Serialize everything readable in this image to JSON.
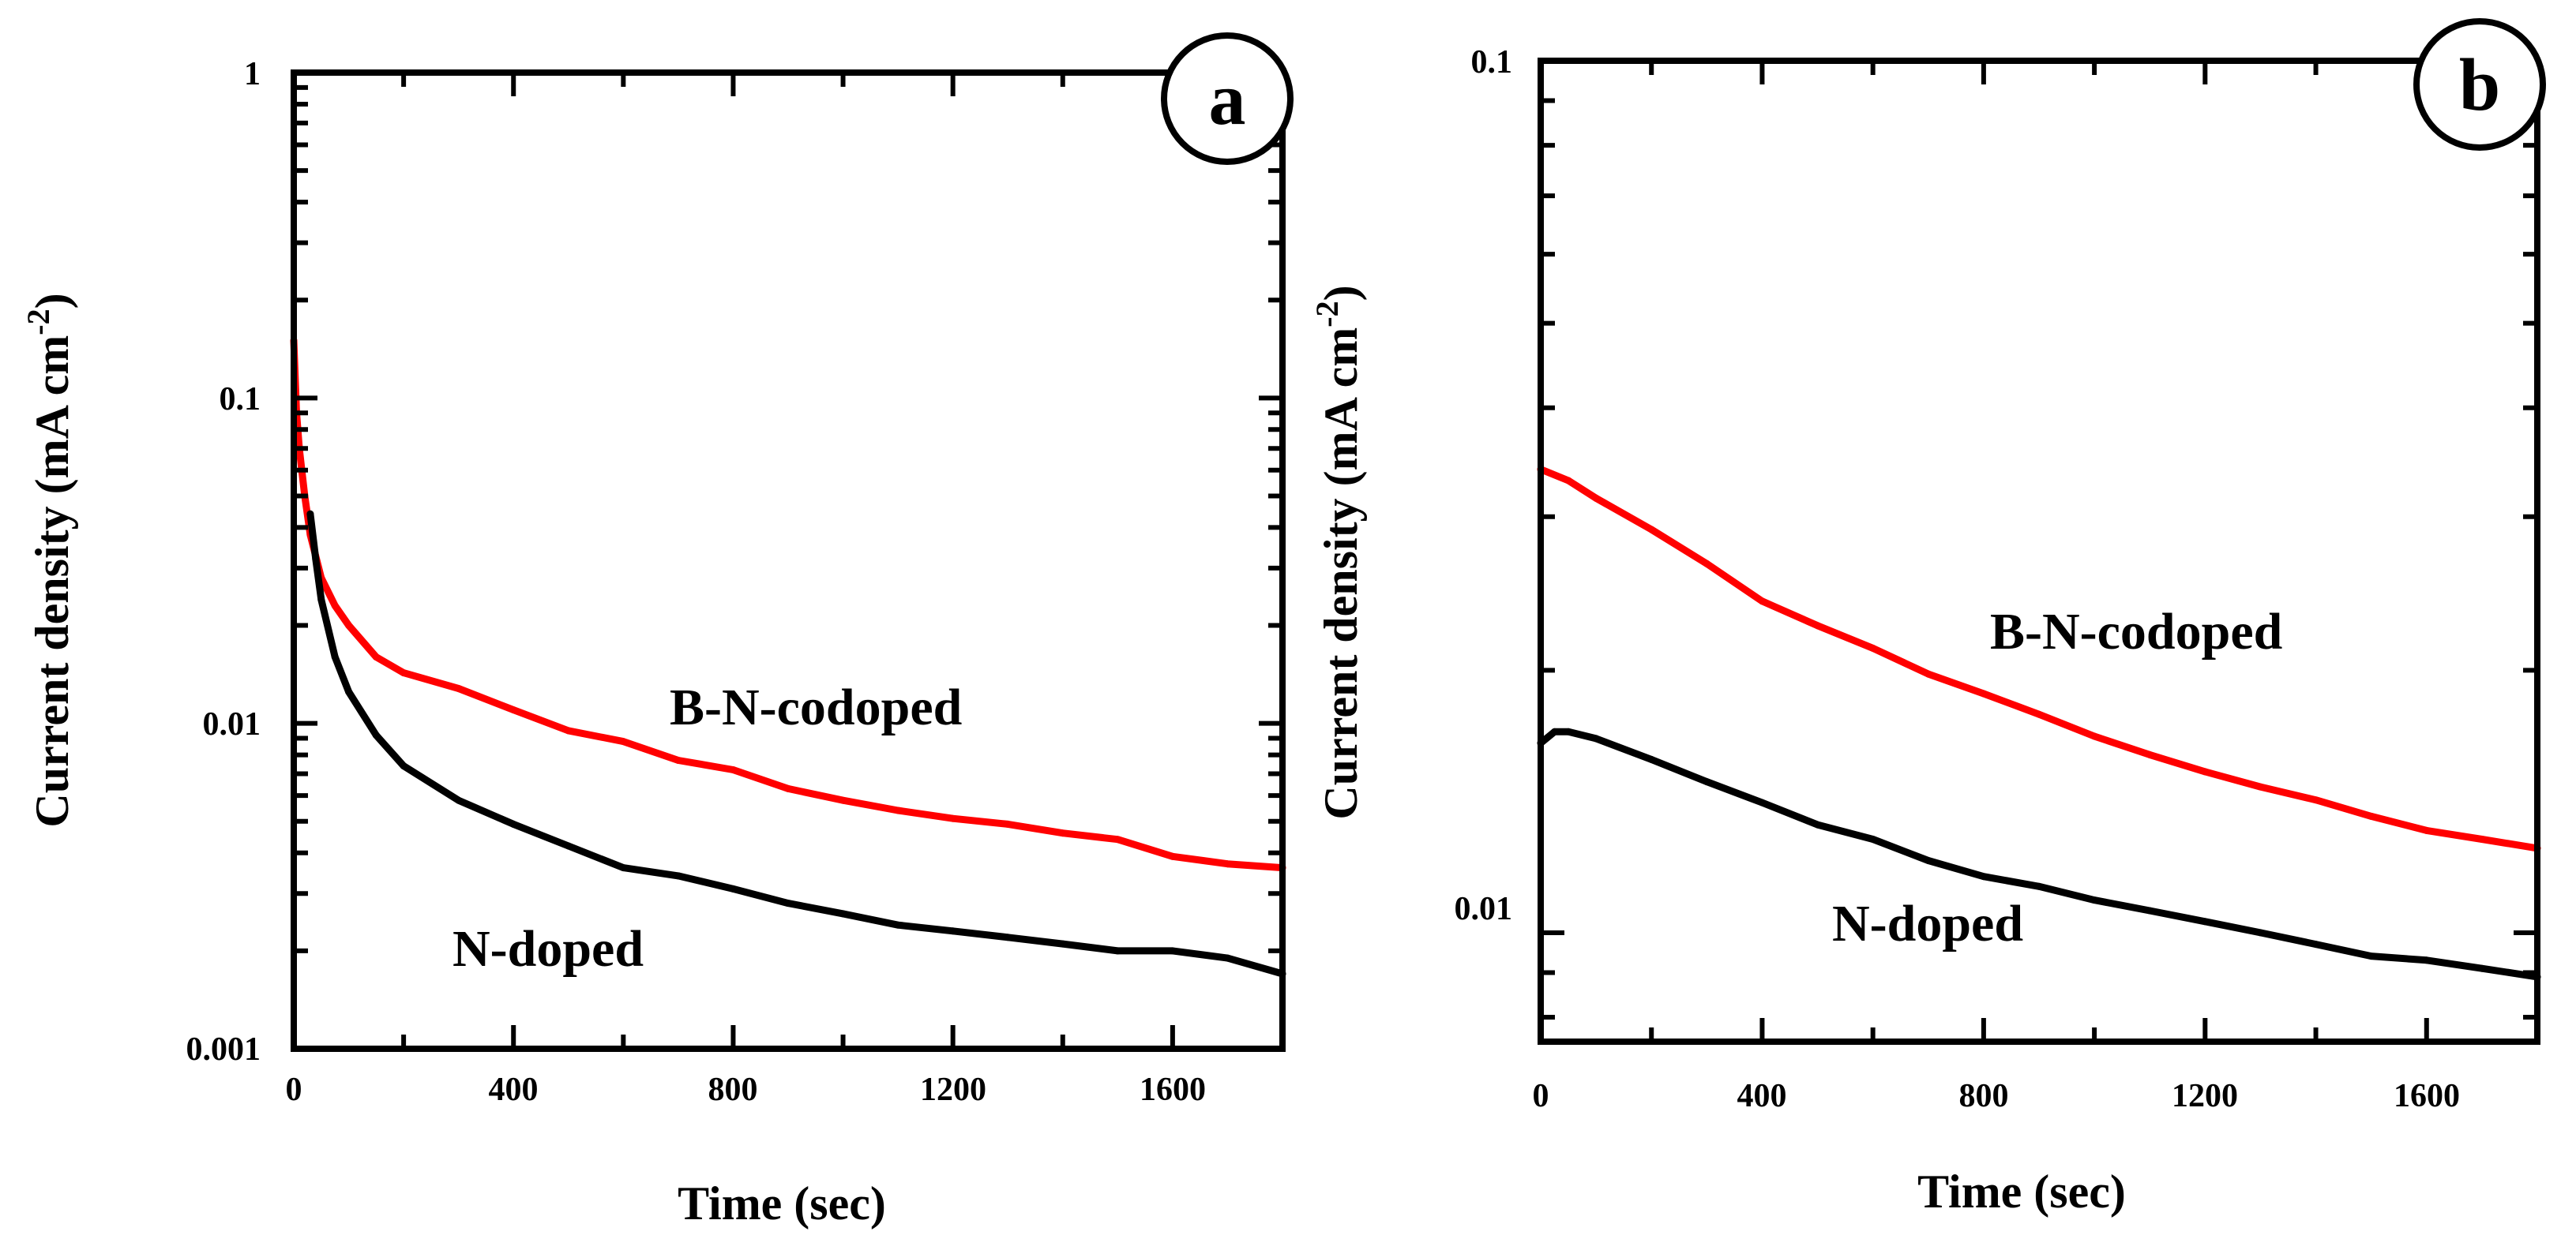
{
  "chart_data": [
    {
      "panel": "a",
      "type": "line",
      "y_scale": "log",
      "xlabel": "Time (sec)",
      "ylabel": "Current density (mA cm^-2)",
      "ylabel_parts": {
        "main": "Current density (mA cm",
        "sup": "-2",
        "close": ")"
      },
      "xlim": [
        0,
        1800
      ],
      "ylim": [
        0.001,
        1
      ],
      "x_ticks": [
        0,
        400,
        800,
        1200,
        1600
      ],
      "x_tick_labels": [
        "0",
        "400",
        "800",
        "1200",
        "1600"
      ],
      "y_ticks": [
        0.001,
        0.01,
        0.1,
        1
      ],
      "y_tick_labels": [
        "0.001",
        "0.01",
        "0.1",
        "1"
      ],
      "series": [
        {
          "name": "B-N-codoped",
          "color": "#ff0000",
          "x": [
            0,
            5,
            10,
            20,
            30,
            50,
            75,
            100,
            150,
            200,
            300,
            400,
            500,
            600,
            700,
            800,
            900,
            1000,
            1100,
            1200,
            1300,
            1400,
            1500,
            1600,
            1700,
            1800
          ],
          "y": [
            0.15,
            0.09,
            0.07,
            0.05,
            0.038,
            0.028,
            0.023,
            0.02,
            0.016,
            0.0143,
            0.0128,
            0.011,
            0.0095,
            0.0088,
            0.0077,
            0.0072,
            0.0063,
            0.0058,
            0.0054,
            0.0051,
            0.0049,
            0.0046,
            0.0044,
            0.0039,
            0.0037,
            0.0036
          ]
        },
        {
          "name": "N-doped",
          "color": "#000000",
          "x": [
            30,
            40,
            50,
            75,
            100,
            150,
            200,
            300,
            400,
            500,
            600,
            700,
            800,
            900,
            1000,
            1100,
            1200,
            1300,
            1400,
            1500,
            1600,
            1700,
            1800
          ],
          "y": [
            0.044,
            0.032,
            0.024,
            0.016,
            0.0125,
            0.0092,
            0.0074,
            0.0058,
            0.0049,
            0.0042,
            0.0036,
            0.0034,
            0.0031,
            0.0028,
            0.0026,
            0.0024,
            0.0023,
            0.0022,
            0.0021,
            0.002,
            0.002,
            0.0019,
            0.0017
          ]
        }
      ],
      "annotations": [
        "B-N-codoped",
        "N-doped"
      ]
    },
    {
      "panel": "b",
      "type": "line",
      "y_scale": "log",
      "xlabel": "Time (sec)",
      "ylabel": "Current density (mA cm^-2)",
      "ylabel_parts": {
        "main": "Current density (mA cm",
        "sup": "-2",
        "close": ")"
      },
      "xlim": [
        0,
        1800
      ],
      "ylim": [
        0.0075,
        0.1
      ],
      "x_ticks": [
        0,
        400,
        800,
        1200,
        1600
      ],
      "x_tick_labels": [
        "0",
        "400",
        "800",
        "1200",
        "1600"
      ],
      "y_ticks": [
        0.01,
        0.1
      ],
      "y_tick_labels": [
        "0.01",
        "0.1"
      ],
      "series": [
        {
          "name": "B-N-codoped",
          "color": "#ff0000",
          "x": [
            0,
            50,
            100,
            200,
            300,
            400,
            500,
            600,
            700,
            800,
            900,
            1000,
            1100,
            1200,
            1300,
            1400,
            1500,
            1600,
            1700,
            1800
          ],
          "y": [
            0.034,
            0.033,
            0.0315,
            0.029,
            0.0265,
            0.024,
            0.0225,
            0.0212,
            0.0198,
            0.0188,
            0.0178,
            0.0168,
            0.016,
            0.0153,
            0.0147,
            0.0142,
            0.0136,
            0.0131,
            0.0128,
            0.0125
          ]
        },
        {
          "name": "N-doped",
          "color": "#000000",
          "x": [
            0,
            25,
            50,
            100,
            200,
            300,
            400,
            500,
            600,
            700,
            800,
            900,
            1000,
            1100,
            1200,
            1300,
            1400,
            1500,
            1600,
            1700,
            1800
          ],
          "y": [
            0.0165,
            0.017,
            0.017,
            0.0167,
            0.0158,
            0.0149,
            0.0141,
            0.0133,
            0.0128,
            0.0121,
            0.0116,
            0.0113,
            0.0109,
            0.0106,
            0.0103,
            0.01,
            0.0097,
            0.0094,
            0.0093,
            0.0091,
            0.0089
          ]
        }
      ],
      "annotations": [
        "B-N-codoped",
        "N-doped"
      ]
    }
  ]
}
